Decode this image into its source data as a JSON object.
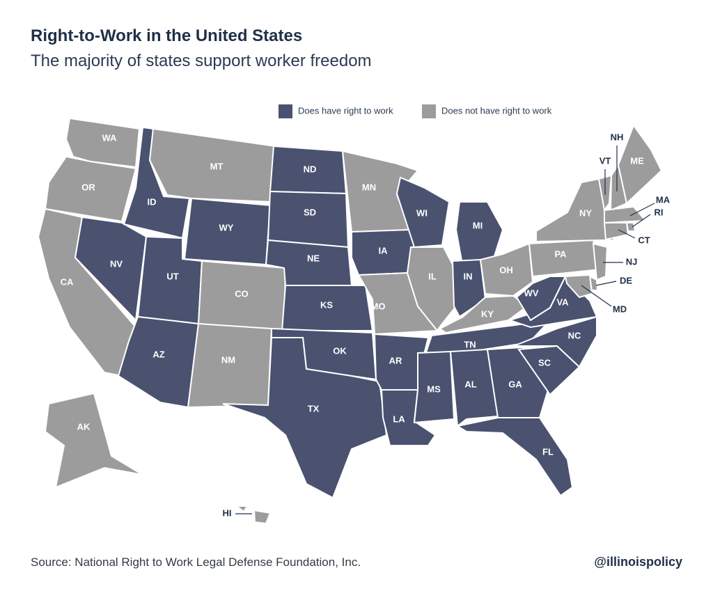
{
  "title": "Right-to-Work in the United States",
  "subtitle": "The majority of states support worker freedom",
  "legend": [
    {
      "label": "Does have right to work",
      "color": "#4a5270"
    },
    {
      "label": "Does not have right to work",
      "color": "#9c9c9c"
    }
  ],
  "states": [
    {
      "label": "WA",
      "right_to_work": false
    },
    {
      "label": "OR",
      "right_to_work": false
    },
    {
      "label": "CA",
      "right_to_work": false
    },
    {
      "label": "NV",
      "right_to_work": true
    },
    {
      "label": "ID",
      "right_to_work": true
    },
    {
      "label": "MT",
      "right_to_work": false
    },
    {
      "label": "WY",
      "right_to_work": true
    },
    {
      "label": "UT",
      "right_to_work": true
    },
    {
      "label": "AZ",
      "right_to_work": true
    },
    {
      "label": "CO",
      "right_to_work": false
    },
    {
      "label": "NM",
      "right_to_work": false
    },
    {
      "label": "ND",
      "right_to_work": true
    },
    {
      "label": "SD",
      "right_to_work": true
    },
    {
      "label": "NE",
      "right_to_work": true
    },
    {
      "label": "KS",
      "right_to_work": true
    },
    {
      "label": "OK",
      "right_to_work": true
    },
    {
      "label": "TX",
      "right_to_work": true
    },
    {
      "label": "MN",
      "right_to_work": false
    },
    {
      "label": "IA",
      "right_to_work": true
    },
    {
      "label": "MO",
      "right_to_work": false
    },
    {
      "label": "AR",
      "right_to_work": true
    },
    {
      "label": "LA",
      "right_to_work": true
    },
    {
      "label": "WI",
      "right_to_work": true
    },
    {
      "label": "IL",
      "right_to_work": false
    },
    {
      "label": "MI",
      "right_to_work": true
    },
    {
      "label": "IN",
      "right_to_work": true
    },
    {
      "label": "OH",
      "right_to_work": false
    },
    {
      "label": "KY",
      "right_to_work": false
    },
    {
      "label": "TN",
      "right_to_work": true
    },
    {
      "label": "MS",
      "right_to_work": true
    },
    {
      "label": "AL",
      "right_to_work": true
    },
    {
      "label": "GA",
      "right_to_work": true
    },
    {
      "label": "FL",
      "right_to_work": true
    },
    {
      "label": "SC",
      "right_to_work": true
    },
    {
      "label": "NC",
      "right_to_work": true
    },
    {
      "label": "VA",
      "right_to_work": true
    },
    {
      "label": "WV",
      "right_to_work": true
    },
    {
      "label": "PA",
      "right_to_work": false
    },
    {
      "label": "NY",
      "right_to_work": false
    },
    {
      "label": "VT",
      "right_to_work": false
    },
    {
      "label": "NH",
      "right_to_work": false
    },
    {
      "label": "ME",
      "right_to_work": false
    },
    {
      "label": "MA",
      "right_to_work": false
    },
    {
      "label": "RI",
      "right_to_work": false
    },
    {
      "label": "CT",
      "right_to_work": false
    },
    {
      "label": "NJ",
      "right_to_work": false
    },
    {
      "label": "DE",
      "right_to_work": false
    },
    {
      "label": "MD",
      "right_to_work": false
    },
    {
      "label": "AK",
      "right_to_work": false
    },
    {
      "label": "HI",
      "right_to_work": false
    }
  ],
  "source": "Source: National Right to Work Legal Defense Foundation, Inc.",
  "handle": "@illinoispolicy"
}
